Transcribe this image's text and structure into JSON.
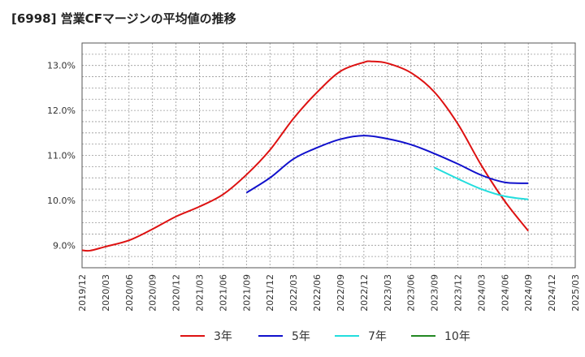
{
  "chart_data": {
    "type": "line",
    "title": "[6998]  営業CFマージンの平均値の推移",
    "xlabel": "",
    "ylabel": "",
    "x_ticks": [
      "2019/12",
      "2020/03",
      "2020/06",
      "2020/09",
      "2020/12",
      "2021/03",
      "2021/06",
      "2021/09",
      "2021/12",
      "2022/03",
      "2022/06",
      "2022/09",
      "2022/12",
      "2023/03",
      "2023/06",
      "2023/09",
      "2023/12",
      "2024/03",
      "2024/06",
      "2024/09",
      "2024/12",
      "2025/03"
    ],
    "y_ticks": [
      "9.0%",
      "10.0%",
      "11.0%",
      "12.0%",
      "13.0%"
    ],
    "ylim": [
      8.5,
      13.5
    ],
    "grid": true,
    "legend_position": "bottom",
    "series": [
      {
        "name": "3年",
        "color": "#dd1111",
        "x": [
          "2019/12",
          "2020/01",
          "2020/03",
          "2020/06",
          "2020/09",
          "2020/12",
          "2021/03",
          "2021/06",
          "2021/09",
          "2021/12",
          "2022/03",
          "2022/06",
          "2022/09",
          "2022/12",
          "2023/01",
          "2023/03",
          "2023/06",
          "2023/09",
          "2023/12",
          "2024/03",
          "2024/06",
          "2024/09"
        ],
        "values": [
          8.89,
          8.88,
          8.97,
          9.11,
          9.36,
          9.64,
          9.86,
          10.13,
          10.57,
          11.12,
          11.82,
          12.4,
          12.87,
          13.07,
          13.09,
          13.05,
          12.84,
          12.41,
          11.7,
          10.78,
          9.98,
          9.32
        ]
      },
      {
        "name": "5年",
        "color": "#1010cc",
        "x": [
          "2021/09",
          "2021/12",
          "2022/03",
          "2022/06",
          "2022/09",
          "2022/12",
          "2023/03",
          "2023/06",
          "2023/09",
          "2023/12",
          "2024/03",
          "2024/06",
          "2024/09"
        ],
        "values": [
          10.17,
          10.5,
          10.92,
          11.17,
          11.36,
          11.44,
          11.37,
          11.24,
          11.04,
          10.81,
          10.56,
          10.4,
          10.38
        ]
      },
      {
        "name": "7年",
        "color": "#22dddd",
        "x": [
          "2023/09",
          "2023/12",
          "2024/03",
          "2024/06",
          "2024/09"
        ],
        "values": [
          10.73,
          10.48,
          10.25,
          10.09,
          10.02
        ]
      },
      {
        "name": "10年",
        "color": "#228822",
        "x": [],
        "values": []
      }
    ]
  }
}
